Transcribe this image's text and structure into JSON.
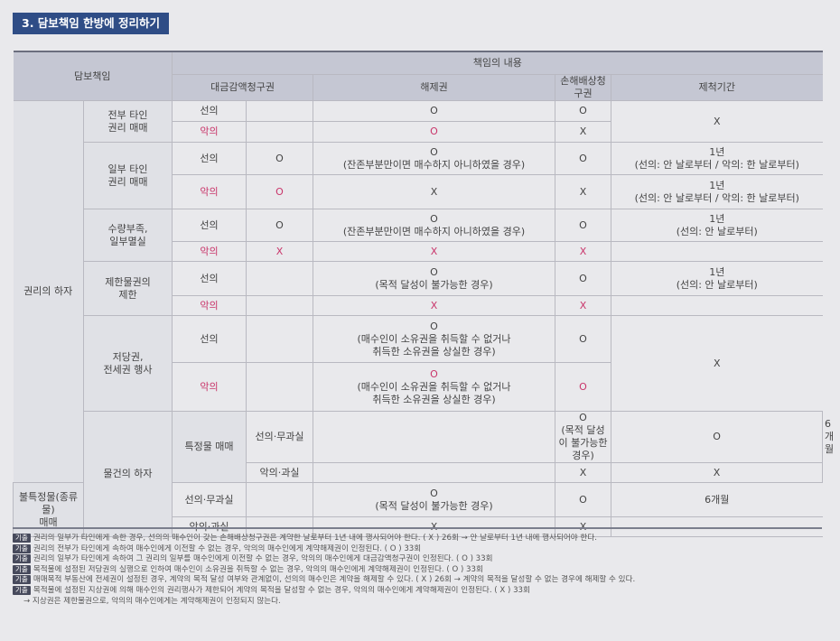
{
  "section_title": "3. 담보책임 한방에 정리하기",
  "headers": {
    "liability": "담보책임",
    "content": "책임의 내용",
    "price_reduction": "대금감액청구권",
    "rescission": "해제권",
    "damages": "손해배상청구권",
    "period": "제척기간"
  },
  "categories": {
    "rights": "권리의 하자",
    "goods": "물건의 하자"
  },
  "rows": {
    "all_other": "전부 타인\n권리 매매",
    "part_other": "일부 타인\n권리 매매",
    "quantity": "수량부족,\n일부멸실",
    "restricted": "제한물권의\n제한",
    "mortgage": "저당권,\n전세권 행사",
    "specific": "특정물 매매",
    "unspecific": "불특정물(종류물)\n매매"
  },
  "labels": {
    "good_faith": "선의",
    "bad_faith": "악의",
    "good_no_fault": "선의·무과실",
    "bad_fault": "악의·과실",
    "o": "O",
    "x": "X"
  },
  "texts": {
    "remain_cond": "(잔존부분만이면 매수하지 아니하였을 경우)",
    "purpose_cond": "(목적 달성이 불가능한 경우)",
    "mortgage_cond": "(매수인이 소유권을 취득할 수 없거나\n취득한 소유권을 상실한 경우)",
    "period_1y_both": "1년\n(선의: 안 날로부터 / 악의: 한 날로부터)",
    "period_1y_good": "1년\n(선의: 안 날로부터)",
    "period_6m": "6개월"
  },
  "notes": {
    "tag": "기출",
    "n1": "권리의 일부가 타인에게 속한 경우, 선의의 매수인이 갖는 손해배상청구권은 계약한 날로부터 1년 내에 행사되어야 한다. ( X ) 26회 → 안 날로부터 1년 내에 행사되어야 한다.",
    "n2": "권리의 전부가 타인에게 속하여 매수인에게 이전할 수 없는 경우, 악의의 매수인에게 계약해제권이 인정된다. ( O ) 33회",
    "n3": "권리의 일부가 타인에게 속하여 그 권리의 일부를 매수인에게 이전할 수 없는 경우, 악의의 매수인에게 대금감액청구권이 인정된다. ( O ) 33회",
    "n4": "목적물에 설정된 저당권의 실행으로 인하여 매수인이 소유권을 취득할 수 없는 경우, 악의의 매수인에게 계약해제권이 인정된다. ( O ) 33회",
    "n5": "매매목적 부동산에 전세권이 설정된 경우, 계약의 목적 달성 여부와 관계없이, 선의의 매수인은 계약을 해제할 수 있다. ( X ) 26회 → 계약의 목적을 달성할 수 없는 경우에 해제할 수 있다.",
    "n6": "목적물에 설정된 지상권에 의해 매수인의 권리행사가 제한되어 계약의 목적을 달성할 수 없는 경우, 악의의 매수인에게 계약해제권이 인정된다. ( X ) 33회",
    "n6b": "→ 지상권은 제한물권으로, 악의의 매수인에게는 계약해제권이 인정되지 않는다."
  }
}
